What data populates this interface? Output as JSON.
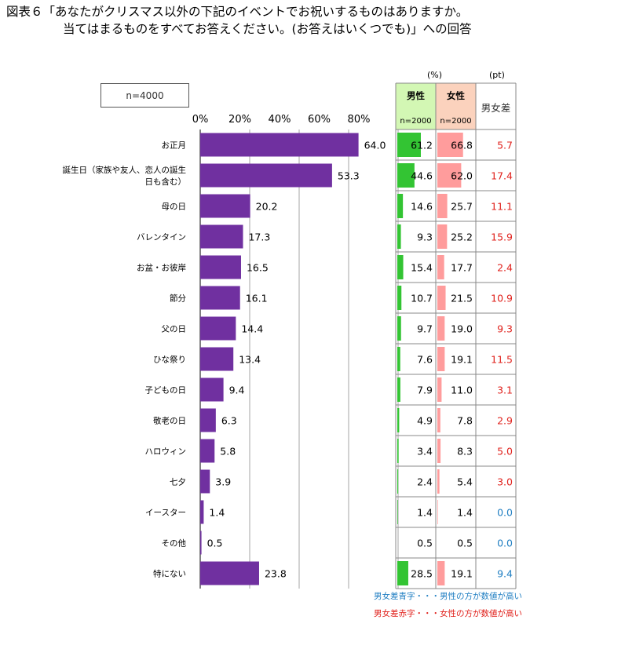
{
  "title": {
    "line1": "図表６「あなたがクリスマス以外の下記のイベントでお祝いするものはありますか。",
    "line2": "当てはまるものをすべてお答えください。(お答えはいくつでも)」への回答"
  },
  "sample": "n=4000",
  "units": {
    "pct": "(%)",
    "pt": "(pt)"
  },
  "table_headers": {
    "male": "男性",
    "male_n": "n=2000",
    "female": "女性",
    "female_n": "n=2000",
    "diff": "男女差"
  },
  "legend": {
    "blue": "男女差青字・・・男性の方が数値が高い",
    "red": "男女差赤字・・・女性の方が数値が高い"
  },
  "colors": {
    "bar": "#7030a0",
    "male": "#33c433",
    "female": "#ff9c9c",
    "male_header": "#d3f7b4",
    "female_header": "#fbd2bd",
    "diff_red": "#e0201b",
    "diff_blue": "#1f7ec2"
  },
  "chart_data": {
    "type": "bar",
    "orientation": "horizontal",
    "xlim": [
      0,
      80
    ],
    "x_ticks": [
      "0%",
      "20%",
      "40%",
      "60%",
      "80%"
    ],
    "grid": true,
    "categories": [
      "お正月",
      "誕生日（家族や友人、恋人の誕生日も含む）",
      "母の日",
      "バレンタイン",
      "お盆・お彼岸",
      "節分",
      "父の日",
      "ひな祭り",
      "子どもの日",
      "敬老の日",
      "ハロウィン",
      "七夕",
      "イースター",
      "その他",
      "特にない"
    ],
    "category_lines": [
      [
        "お正月"
      ],
      [
        "誕生日（家族や友人、恋人の誕生",
        "日も含む）"
      ],
      [
        "母の日"
      ],
      [
        "バレンタイン"
      ],
      [
        "お盆・お彼岸"
      ],
      [
        "節分"
      ],
      [
        "父の日"
      ],
      [
        "ひな祭り"
      ],
      [
        "子どもの日"
      ],
      [
        "敬老の日"
      ],
      [
        "ハロウィン"
      ],
      [
        "七夕"
      ],
      [
        "イースター"
      ],
      [
        "その他"
      ],
      [
        "特にない"
      ]
    ],
    "values": [
      64.0,
      53.3,
      20.2,
      17.3,
      16.5,
      16.1,
      14.4,
      13.4,
      9.4,
      6.3,
      5.8,
      3.9,
      1.4,
      0.5,
      23.8
    ],
    "male": [
      61.2,
      44.6,
      14.6,
      9.3,
      15.4,
      10.7,
      9.7,
      7.6,
      7.9,
      4.9,
      3.4,
      2.4,
      1.4,
      0.5,
      28.5
    ],
    "female": [
      66.8,
      62.0,
      25.7,
      25.2,
      17.7,
      21.5,
      19.0,
      19.1,
      11.0,
      7.8,
      8.3,
      5.4,
      1.4,
      0.5,
      19.1
    ],
    "diff": [
      5.7,
      17.4,
      11.1,
      15.9,
      2.4,
      10.9,
      9.3,
      11.5,
      3.1,
      2.9,
      5.0,
      3.0,
      0.0,
      0.0,
      9.4
    ],
    "diff_color": [
      "red",
      "red",
      "red",
      "red",
      "red",
      "red",
      "red",
      "red",
      "red",
      "red",
      "red",
      "red",
      "blue",
      "blue",
      "blue"
    ]
  }
}
